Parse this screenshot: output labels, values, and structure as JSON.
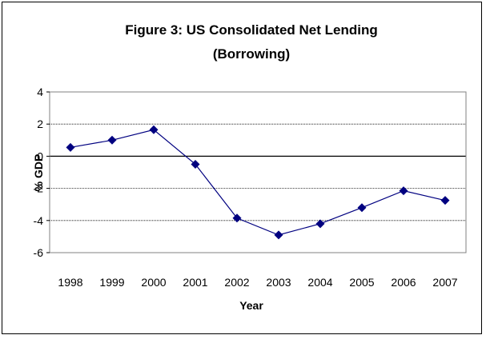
{
  "chart_data": {
    "type": "line",
    "title": "Figure 3: US Consolidated Net Lending",
    "subtitle": "(Borrowing)",
    "xlabel": "Year",
    "ylabel": "% GDP",
    "categories": [
      "1998",
      "1999",
      "2000",
      "2001",
      "2002",
      "2003",
      "2004",
      "2005",
      "2006",
      "2007"
    ],
    "series": [
      {
        "values": [
          0.55,
          1.0,
          1.65,
          -0.5,
          -3.85,
          -4.9,
          -4.2,
          -3.2,
          -2.15,
          -2.75
        ]
      }
    ],
    "ylim": [
      -6,
      4
    ],
    "yticks": [
      4,
      2,
      0,
      -2,
      -4,
      -6
    ],
    "ytick_labels": [
      "4",
      "2",
      "0",
      "-2",
      "-4",
      "-6"
    ],
    "grid": true,
    "legend": "none",
    "colors": {
      "series": "#000080",
      "plot_border": "#808080",
      "gridline": "#000000",
      "zero_line": "#000000"
    },
    "marker": "diamond-icon"
  }
}
